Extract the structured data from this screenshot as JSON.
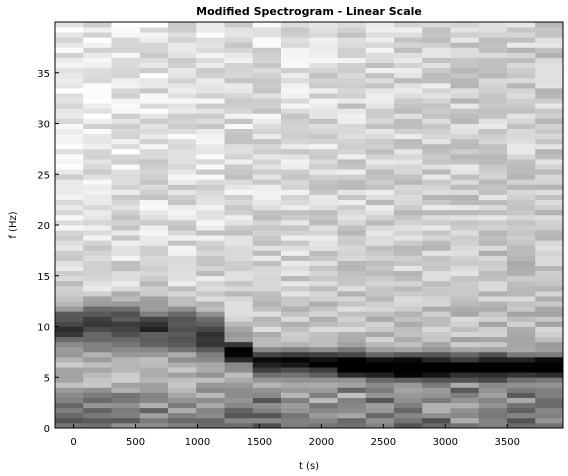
{
  "chart_data": {
    "type": "heatmap",
    "title": "Modified Spectrogram - Linear Scale",
    "xlabel": "t (s)",
    "ylabel": "f (Hz)",
    "x_ticks": [
      "0",
      "500",
      "1000",
      "1500",
      "2000",
      "2500",
      "3000",
      "3500"
    ],
    "y_ticks": [
      "0",
      "5",
      "10",
      "15",
      "20",
      "25",
      "30",
      "35"
    ],
    "xlim": [
      -150,
      3950
    ],
    "ylim": [
      0,
      40
    ],
    "colormap": "gray (high = dark)",
    "n_time_bins": 18,
    "n_freq_bins": 80,
    "time_bin_width": 228,
    "freq_bin_width": 0.5,
    "dominant_band": [
      {
        "t": 0,
        "f": 10.0
      },
      {
        "t": 500,
        "f": 10.0
      },
      {
        "t": 1000,
        "f": 9.5
      },
      {
        "t": 1500,
        "f": 6.5
      },
      {
        "t": 2000,
        "f": 6.5
      },
      {
        "t": 2500,
        "f": 6.0
      },
      {
        "t": 3000,
        "f": 6.0
      },
      {
        "t": 3500,
        "f": 6.0
      },
      {
        "t": 3850,
        "f": 6.0
      }
    ],
    "grid": false
  }
}
